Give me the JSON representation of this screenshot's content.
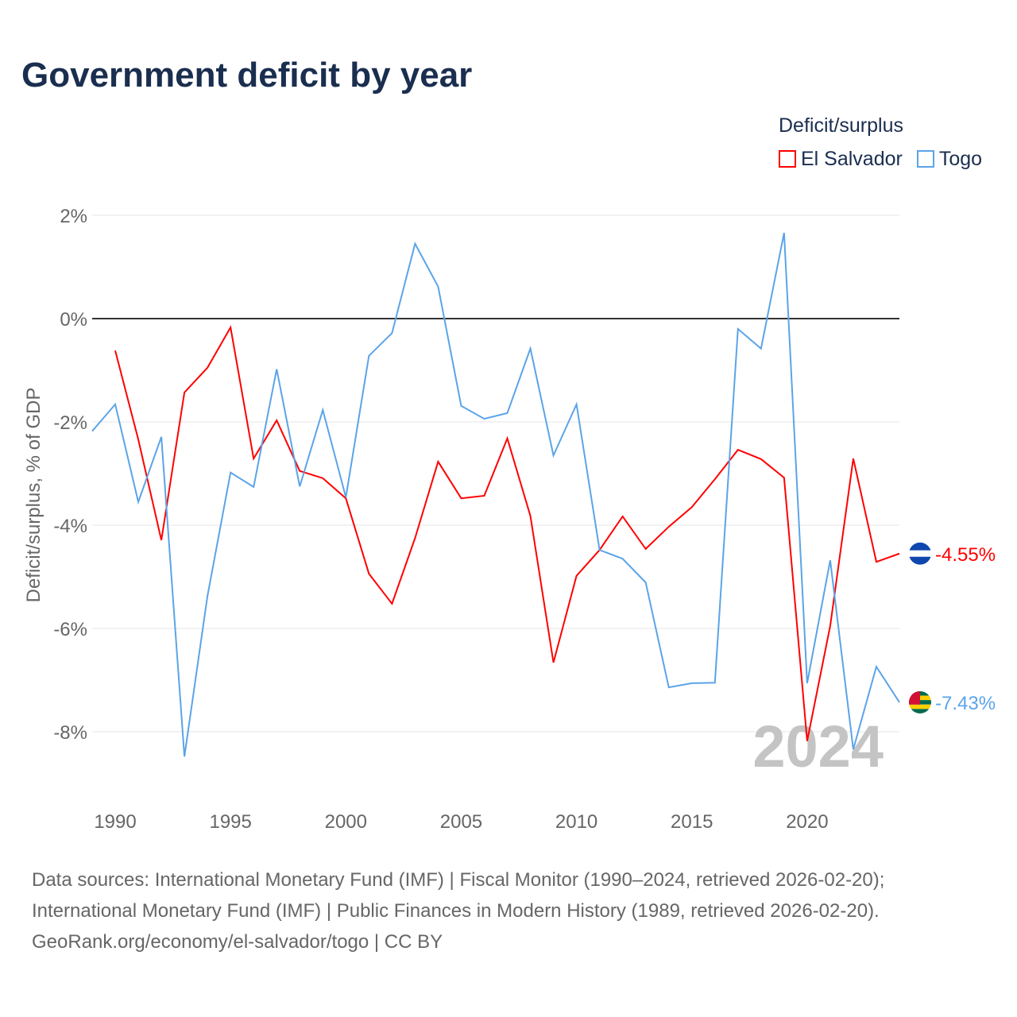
{
  "header": {
    "title": "Government deficit by year"
  },
  "legend": {
    "title": "Deficit/surplus",
    "items": [
      {
        "label": "El Salvador",
        "color": "#ff0000"
      },
      {
        "label": "Togo",
        "color": "#5ba4e8"
      }
    ]
  },
  "footer": {
    "line1": "Data sources: International Monetary Fund (IMF) | Fiscal Monitor (1990–2024, retrieved 2026-02-20);",
    "line2": "International Monetary Fund (IMF) | Public Finances in Modern History (1989, retrieved 2026-02-20).",
    "line3": "GeoRank.org/economy/el-salvador/togo | CC BY"
  },
  "chart_data": {
    "type": "line",
    "title": "Government deficit by year",
    "ylabel": "Deficit/surplus, % of GDP",
    "xlim": [
      1989,
      2024
    ],
    "ylim": [
      -9.2,
      2.4
    ],
    "yticks": [
      2,
      0,
      -2,
      -4,
      -6,
      -8
    ],
    "ytick_labels": [
      "2%",
      "0%",
      "-2%",
      "-4%",
      "-6%",
      "-8%"
    ],
    "xticks": [
      1990,
      1995,
      2000,
      2005,
      2010,
      2015,
      2020
    ],
    "year_watermark": "2024",
    "series": [
      {
        "name": "El Salvador",
        "color": "#ff0000",
        "end_label": "-4.55%",
        "start": 1990,
        "values": [
          -0.62,
          -2.34,
          -4.29,
          -1.43,
          -0.95,
          -0.17,
          -2.71,
          -1.97,
          -2.95,
          -3.09,
          -3.48,
          -4.94,
          -5.52,
          -4.25,
          -2.77,
          -3.48,
          -3.43,
          -2.32,
          -3.82,
          -6.66,
          -4.98,
          -4.48,
          -3.83,
          -4.46,
          -4.03,
          -3.65,
          -3.11,
          -2.54,
          -2.72,
          -3.08,
          -8.18,
          -5.95,
          -2.71,
          -4.71,
          -4.55
        ]
      },
      {
        "name": "Togo",
        "color": "#5ba4e8",
        "end_label": "-7.43%",
        "start": 1989,
        "values": [
          -2.18,
          -1.66,
          -3.55,
          -2.29,
          -8.48,
          -5.37,
          -2.98,
          -3.26,
          -0.98,
          -3.25,
          -1.77,
          -3.46,
          -0.72,
          -0.28,
          1.45,
          0.62,
          -1.69,
          -1.94,
          -1.83,
          -0.58,
          -2.65,
          -1.66,
          -4.48,
          -4.65,
          -5.11,
          -7.14,
          -7.06,
          -7.05,
          -0.2,
          -0.58,
          1.66,
          -7.06,
          -4.68,
          -8.34,
          -6.74,
          -7.43
        ]
      }
    ]
  }
}
